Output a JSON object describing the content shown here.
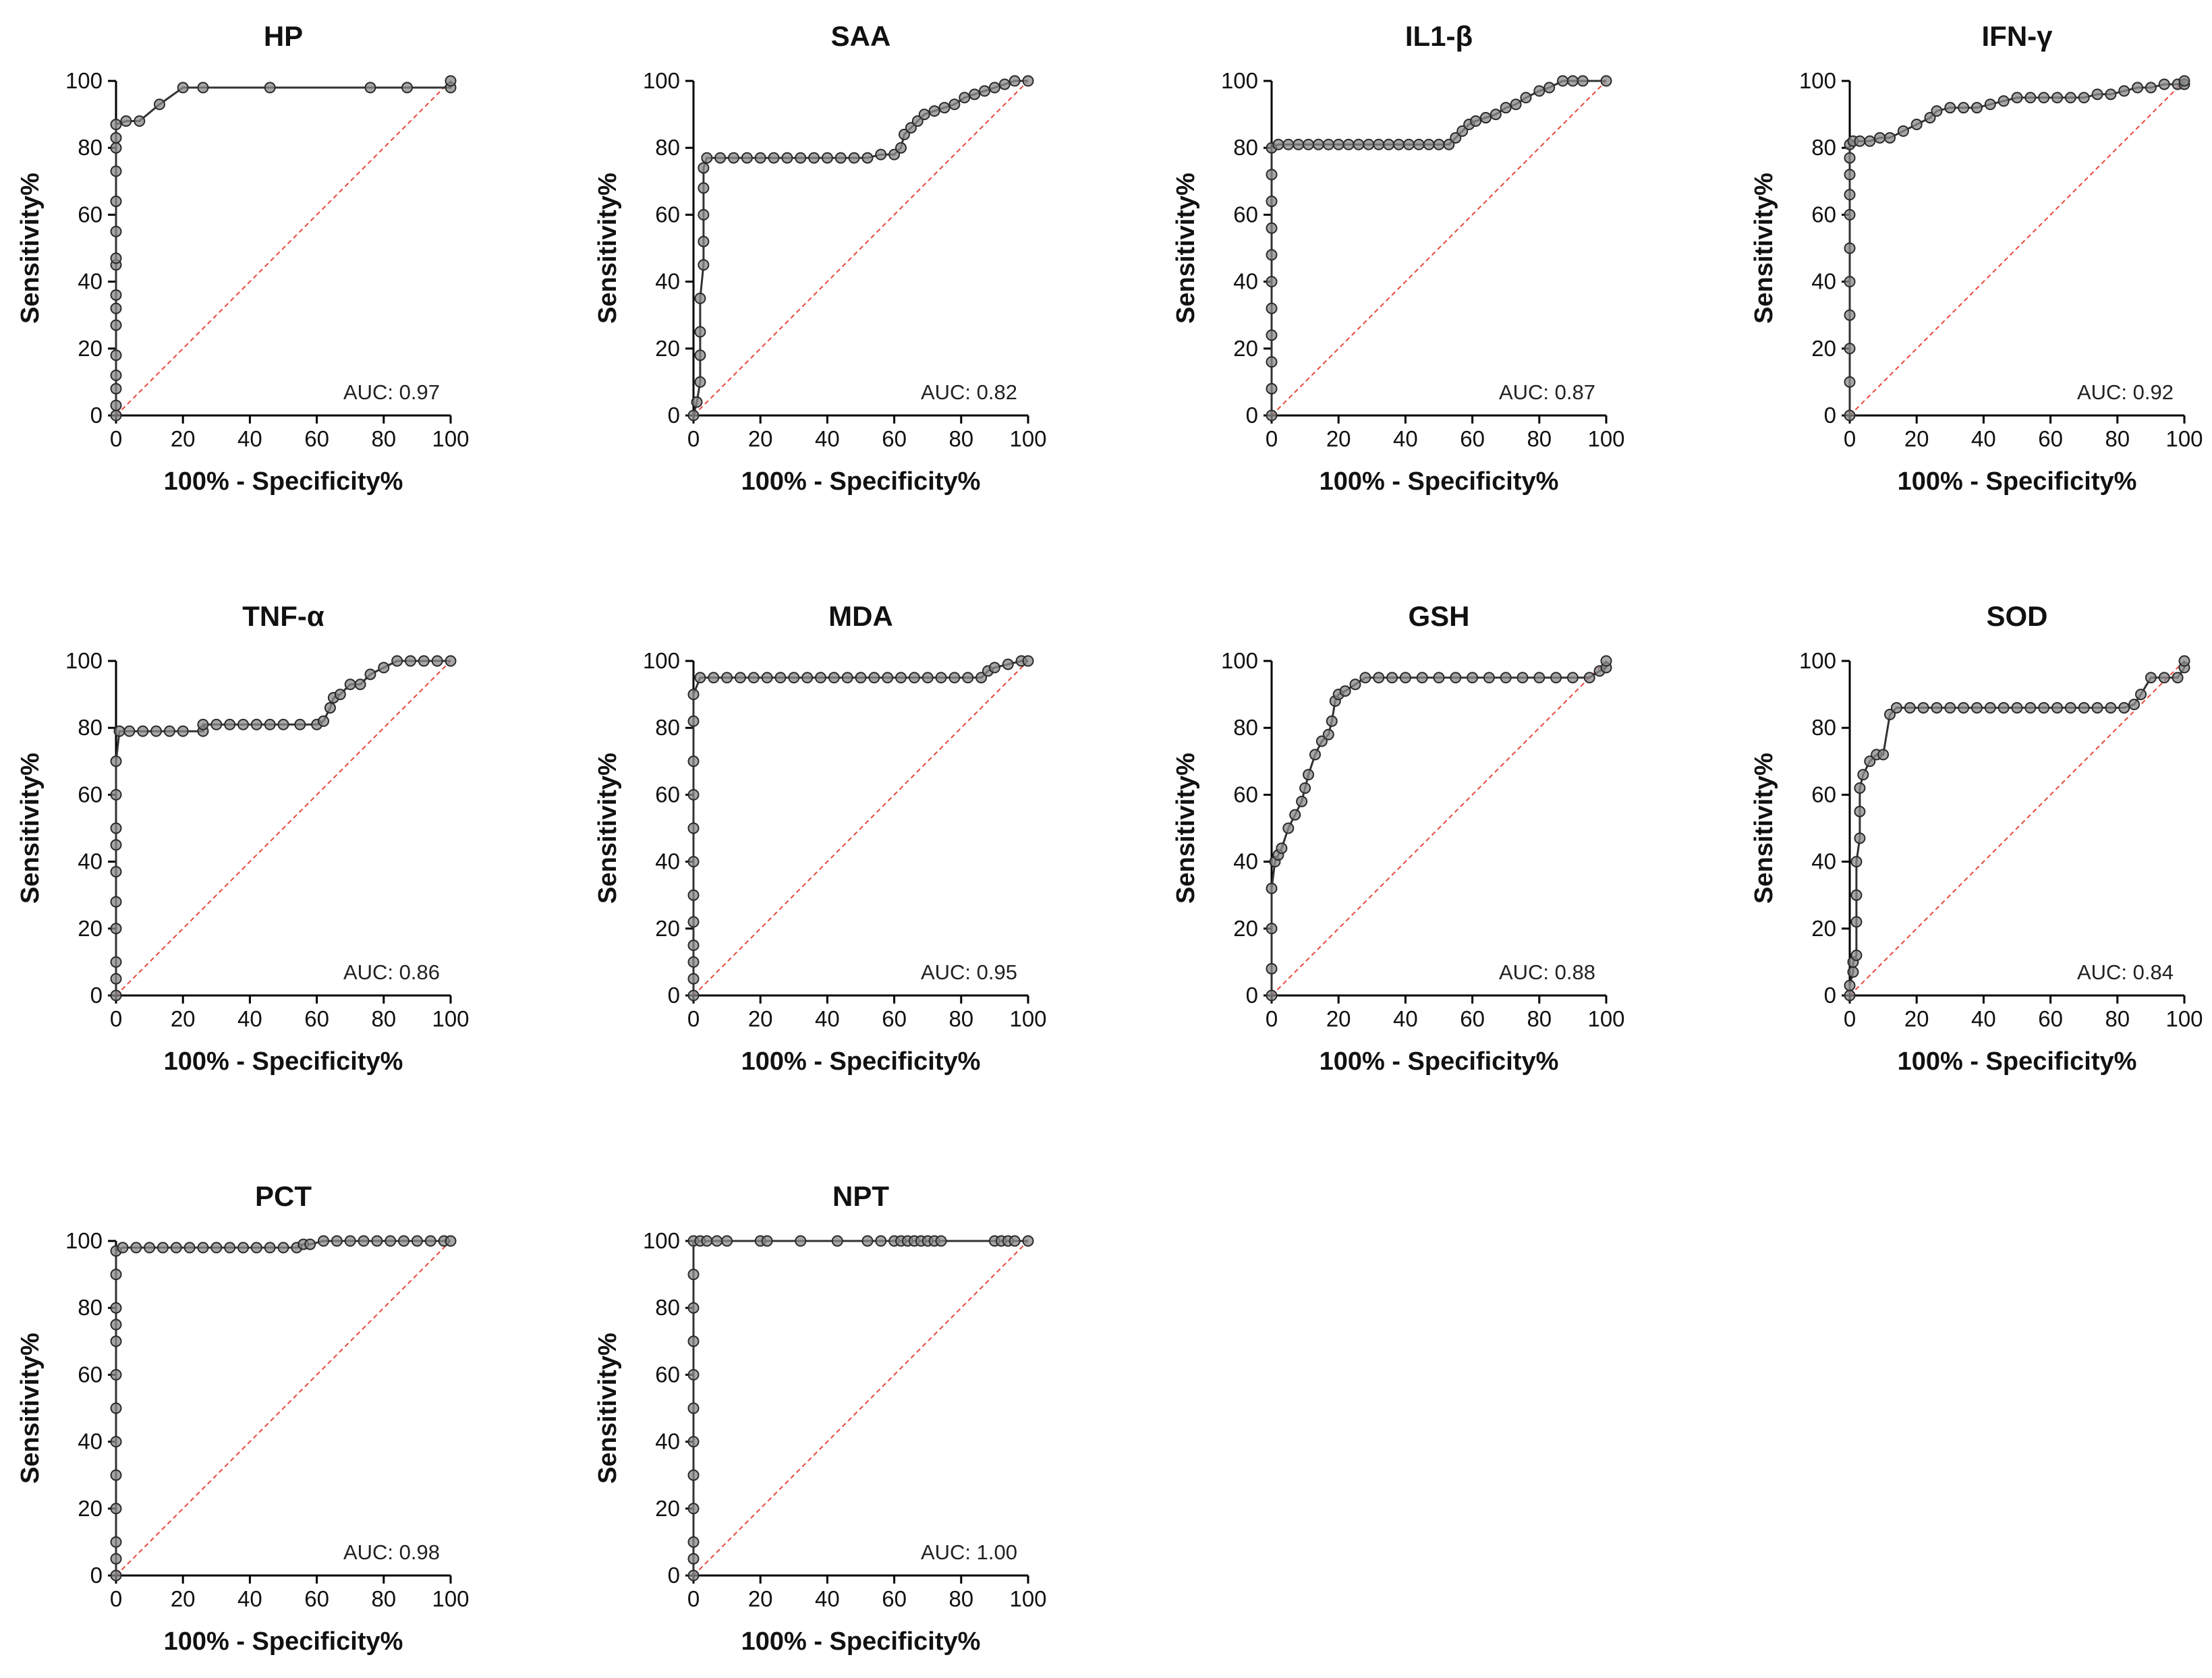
{
  "chart_data": [
    {
      "type": "line",
      "title": "HP",
      "xlabel": "100% - Specificity%",
      "ylabel": "Sensitivity%",
      "xlim": [
        0,
        100
      ],
      "ylim": [
        0,
        100
      ],
      "xticks": [
        "0",
        "20",
        "40",
        "60",
        "80",
        "100"
      ],
      "yticks": [
        "0",
        "20",
        "40",
        "60",
        "80",
        "100"
      ],
      "auc_text": "AUC: 0.97",
      "reference_line": true,
      "series": [
        {
          "x": [
            0,
            0,
            0,
            0,
            0,
            0,
            0,
            0,
            0,
            0,
            0,
            0,
            0,
            0,
            0,
            0,
            3,
            7,
            13,
            20,
            26,
            46,
            76,
            87,
            100,
            100
          ],
          "y": [
            0,
            3,
            8,
            12,
            18,
            27,
            32,
            36,
            45,
            47,
            55,
            64,
            73,
            80,
            83,
            87,
            88,
            88,
            93,
            98,
            98,
            98,
            98,
            98,
            98,
            100
          ]
        }
      ]
    },
    {
      "type": "line",
      "title": "SAA",
      "xlabel": "100% - Specificity%",
      "ylabel": "Sensitivity%",
      "xlim": [
        0,
        100
      ],
      "ylim": [
        0,
        100
      ],
      "xticks": [
        "0",
        "20",
        "40",
        "60",
        "80",
        "100"
      ],
      "yticks": [
        "0",
        "20",
        "40",
        "60",
        "80",
        "100"
      ],
      "auc_text": "AUC: 0.82",
      "reference_line": true,
      "series": [
        {
          "x": [
            0,
            1,
            2,
            2,
            2,
            2,
            3,
            3,
            3,
            3,
            3,
            4,
            8,
            12,
            16,
            20,
            24,
            28,
            32,
            36,
            40,
            44,
            48,
            52,
            56,
            60,
            62,
            63,
            65,
            67,
            69,
            72,
            75,
            78,
            81,
            84,
            87,
            90,
            93,
            96,
            100
          ],
          "y": [
            0,
            4,
            10,
            18,
            25,
            35,
            45,
            52,
            60,
            68,
            74,
            77,
            77,
            77,
            77,
            77,
            77,
            77,
            77,
            77,
            77,
            77,
            77,
            77,
            78,
            78,
            80,
            84,
            86,
            88,
            90,
            91,
            92,
            93,
            95,
            96,
            97,
            98,
            99,
            100,
            100
          ]
        }
      ]
    },
    {
      "type": "line",
      "title": "IL1-β",
      "xlabel": "100% - Specificity%",
      "ylabel": "Sensitivity%",
      "xlim": [
        0,
        100
      ],
      "ylim": [
        0,
        100
      ],
      "xticks": [
        "0",
        "20",
        "40",
        "60",
        "80",
        "100"
      ],
      "yticks": [
        "0",
        "20",
        "40",
        "60",
        "80",
        "100"
      ],
      "auc_text": "AUC: 0.87",
      "reference_line": true,
      "series": [
        {
          "x": [
            0,
            0,
            0,
            0,
            0,
            0,
            0,
            0,
            0,
            0,
            0,
            2,
            5,
            8,
            11,
            14,
            17,
            20,
            23,
            26,
            29,
            32,
            35,
            38,
            41,
            44,
            47,
            50,
            53,
            55,
            57,
            59,
            61,
            64,
            67,
            70,
            73,
            76,
            80,
            83,
            87,
            90,
            93,
            100
          ],
          "y": [
            0,
            8,
            16,
            24,
            32,
            40,
            48,
            56,
            64,
            72,
            80,
            81,
            81,
            81,
            81,
            81,
            81,
            81,
            81,
            81,
            81,
            81,
            81,
            81,
            81,
            81,
            81,
            81,
            81,
            83,
            85,
            87,
            88,
            89,
            90,
            92,
            93,
            95,
            97,
            98,
            100,
            100,
            100,
            100
          ]
        }
      ]
    },
    {
      "type": "line",
      "title": "IFN-γ",
      "xlabel": "100% - Specificity%",
      "ylabel": "Sensitivity%",
      "xlim": [
        0,
        100
      ],
      "ylim": [
        0,
        100
      ],
      "xticks": [
        "0",
        "20",
        "40",
        "60",
        "80",
        "100"
      ],
      "yticks": [
        "0",
        "20",
        "40",
        "60",
        "80",
        "100"
      ],
      "auc_text": "AUC: 0.92",
      "reference_line": true,
      "series": [
        {
          "x": [
            0,
            0,
            0,
            0,
            0,
            0,
            0,
            0,
            0,
            0,
            0,
            1,
            3,
            6,
            9,
            12,
            16,
            20,
            24,
            26,
            30,
            34,
            38,
            42,
            46,
            50,
            54,
            58,
            62,
            66,
            70,
            74,
            78,
            82,
            86,
            90,
            94,
            98,
            100,
            100
          ],
          "y": [
            0,
            10,
            20,
            30,
            40,
            50,
            60,
            66,
            72,
            77,
            81,
            82,
            82,
            82,
            83,
            83,
            85,
            87,
            89,
            91,
            92,
            92,
            92,
            93,
            94,
            95,
            95,
            95,
            95,
            95,
            95,
            96,
            96,
            97,
            98,
            98,
            99,
            99,
            99,
            100
          ]
        }
      ]
    },
    {
      "type": "line",
      "title": "TNF-α",
      "xlabel": "100% - Specificity%",
      "ylabel": "Sensitivity%",
      "xlim": [
        0,
        100
      ],
      "ylim": [
        0,
        100
      ],
      "xticks": [
        "0",
        "20",
        "40",
        "60",
        "80",
        "100"
      ],
      "yticks": [
        "0",
        "20",
        "40",
        "60",
        "80",
        "100"
      ],
      "auc_text": "AUC: 0.86",
      "reference_line": true,
      "series": [
        {
          "x": [
            0,
            0,
            0,
            0,
            0,
            0,
            0,
            0,
            0,
            0,
            1,
            4,
            8,
            12,
            16,
            20,
            26,
            26,
            30,
            34,
            38,
            42,
            46,
            50,
            55,
            60,
            62,
            64,
            65,
            67,
            70,
            73,
            76,
            80,
            84,
            88,
            92,
            96,
            100
          ],
          "y": [
            0,
            5,
            10,
            20,
            28,
            37,
            45,
            50,
            60,
            70,
            79,
            79,
            79,
            79,
            79,
            79,
            79,
            81,
            81,
            81,
            81,
            81,
            81,
            81,
            81,
            81,
            82,
            86,
            89,
            90,
            93,
            93,
            96,
            98,
            100,
            100,
            100,
            100,
            100
          ]
        }
      ]
    },
    {
      "type": "line",
      "title": "MDA",
      "xlabel": "100% - Specificity%",
      "ylabel": "Sensitivity%",
      "xlim": [
        0,
        100
      ],
      "ylim": [
        0,
        100
      ],
      "xticks": [
        "0",
        "20",
        "40",
        "60",
        "80",
        "100"
      ],
      "yticks": [
        "0",
        "20",
        "40",
        "60",
        "80",
        "100"
      ],
      "auc_text": "AUC: 0.95",
      "reference_line": true,
      "series": [
        {
          "x": [
            0,
            0,
            0,
            0,
            0,
            0,
            0,
            0,
            0,
            0,
            0,
            0,
            2,
            6,
            10,
            14,
            18,
            22,
            26,
            30,
            34,
            38,
            42,
            46,
            50,
            54,
            58,
            62,
            66,
            70,
            74,
            78,
            82,
            86,
            88,
            90,
            94,
            98,
            100
          ],
          "y": [
            0,
            5,
            10,
            15,
            22,
            30,
            40,
            50,
            60,
            70,
            82,
            90,
            95,
            95,
            95,
            95,
            95,
            95,
            95,
            95,
            95,
            95,
            95,
            95,
            95,
            95,
            95,
            95,
            95,
            95,
            95,
            95,
            95,
            95,
            97,
            98,
            99,
            100,
            100
          ]
        }
      ]
    },
    {
      "type": "line",
      "title": "GSH",
      "xlabel": "100% - Specificity%",
      "ylabel": "Sensitivity%",
      "xlim": [
        0,
        100
      ],
      "ylim": [
        0,
        100
      ],
      "xticks": [
        "0",
        "20",
        "40",
        "60",
        "80",
        "100"
      ],
      "yticks": [
        "0",
        "20",
        "40",
        "60",
        "80",
        "100"
      ],
      "auc_text": "AUC: 0.88",
      "reference_line": true,
      "series": [
        {
          "x": [
            0,
            0,
            0,
            0,
            1,
            2,
            3,
            5,
            7,
            9,
            10,
            11,
            13,
            15,
            17,
            18,
            19,
            20,
            22,
            25,
            28,
            32,
            36,
            40,
            45,
            50,
            55,
            60,
            65,
            70,
            75,
            80,
            85,
            90,
            95,
            98,
            100,
            100
          ],
          "y": [
            0,
            8,
            20,
            32,
            40,
            42,
            44,
            50,
            54,
            58,
            62,
            66,
            72,
            76,
            78,
            82,
            88,
            90,
            91,
            93,
            95,
            95,
            95,
            95,
            95,
            95,
            95,
            95,
            95,
            95,
            95,
            95,
            95,
            95,
            95,
            97,
            98,
            100
          ]
        }
      ]
    },
    {
      "type": "line",
      "title": "SOD",
      "xlabel": "100% - Specificity%",
      "ylabel": "Sensitivity%",
      "xlim": [
        0,
        100
      ],
      "ylim": [
        0,
        100
      ],
      "xticks": [
        "0",
        "20",
        "40",
        "60",
        "80",
        "100"
      ],
      "yticks": [
        "0",
        "20",
        "40",
        "60",
        "80",
        "100"
      ],
      "auc_text": "AUC: 0.84",
      "reference_line": true,
      "series": [
        {
          "x": [
            0,
            0,
            1,
            1,
            2,
            2,
            2,
            2,
            3,
            3,
            3,
            4,
            6,
            8,
            10,
            12,
            14,
            18,
            22,
            26,
            30,
            34,
            38,
            42,
            46,
            50,
            54,
            58,
            62,
            66,
            70,
            74,
            78,
            82,
            85,
            87,
            90,
            94,
            98,
            100,
            100
          ],
          "y": [
            0,
            3,
            7,
            10,
            12,
            22,
            30,
            40,
            47,
            55,
            62,
            66,
            70,
            72,
            72,
            84,
            86,
            86,
            86,
            86,
            86,
            86,
            86,
            86,
            86,
            86,
            86,
            86,
            86,
            86,
            86,
            86,
            86,
            86,
            87,
            90,
            95,
            95,
            95,
            98,
            100
          ]
        }
      ]
    },
    {
      "type": "line",
      "title": "PCT",
      "xlabel": "100% - Specificity%",
      "ylabel": "Sensitivity%",
      "xlim": [
        0,
        100
      ],
      "ylim": [
        0,
        100
      ],
      "xticks": [
        "0",
        "20",
        "40",
        "60",
        "80",
        "100"
      ],
      "yticks": [
        "0",
        "20",
        "40",
        "60",
        "80",
        "100"
      ],
      "auc_text": "AUC: 0.98",
      "reference_line": true,
      "series": [
        {
          "x": [
            0,
            0,
            0,
            0,
            0,
            0,
            0,
            0,
            0,
            0,
            0,
            0,
            0,
            2,
            6,
            10,
            14,
            18,
            22,
            26,
            30,
            34,
            38,
            42,
            46,
            50,
            54,
            56,
            58,
            62,
            66,
            70,
            74,
            78,
            82,
            86,
            90,
            94,
            98,
            100
          ],
          "y": [
            0,
            5,
            10,
            20,
            30,
            40,
            50,
            60,
            70,
            75,
            80,
            90,
            97,
            98,
            98,
            98,
            98,
            98,
            98,
            98,
            98,
            98,
            98,
            98,
            98,
            98,
            98,
            99,
            99,
            100,
            100,
            100,
            100,
            100,
            100,
            100,
            100,
            100,
            100,
            100
          ]
        }
      ]
    },
    {
      "type": "line",
      "title": "NPT",
      "xlabel": "100% - Specificity%",
      "ylabel": "Sensitivity%",
      "xlim": [
        0,
        100
      ],
      "ylim": [
        0,
        100
      ],
      "xticks": [
        "0",
        "20",
        "40",
        "60",
        "80",
        "100"
      ],
      "yticks": [
        "0",
        "20",
        "40",
        "60",
        "80",
        "100"
      ],
      "auc_text": "AUC: 1.00",
      "reference_line": true,
      "series": [
        {
          "x": [
            0,
            0,
            0,
            0,
            0,
            0,
            0,
            0,
            0,
            0,
            0,
            0,
            2,
            4,
            7,
            10,
            20,
            22,
            32,
            43,
            52,
            56,
            60,
            62,
            64,
            66,
            68,
            70,
            72,
            74,
            90,
            92,
            94,
            96,
            100
          ],
          "y": [
            0,
            5,
            10,
            20,
            30,
            40,
            50,
            60,
            70,
            80,
            90,
            100,
            100,
            100,
            100,
            100,
            100,
            100,
            100,
            100,
            100,
            100,
            100,
            100,
            100,
            100,
            100,
            100,
            100,
            100,
            100,
            100,
            100,
            100,
            100
          ]
        }
      ]
    }
  ],
  "colors": {
    "curve": "#333333",
    "marker_fill": "#8a8a8a",
    "marker_stroke": "#2a2a2a",
    "reference_line": "#e8473a",
    "axis": "#000000"
  }
}
